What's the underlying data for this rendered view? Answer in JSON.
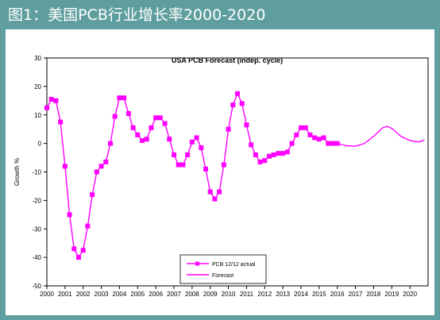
{
  "header": {
    "title": "图1：美国PCB行业增长率2000-2020"
  },
  "chart_data": {
    "type": "line",
    "title": "USA PCB Forecast (indep. cycle)",
    "ylabel": "Growth %",
    "xlabel": "",
    "ylim": [
      -50,
      30
    ],
    "xlim": [
      2000,
      2021
    ],
    "yticks": [
      30,
      20,
      10,
      0,
      -10,
      -20,
      -30,
      -40,
      -50
    ],
    "xticks": [
      "2000",
      "2001",
      "2002",
      "2003",
      "2004",
      "2005",
      "2006",
      "2007",
      "2008",
      "2009",
      "2010",
      "2011",
      "2012",
      "2013",
      "2014",
      "2015",
      "2016",
      "2017",
      "2018",
      "2019",
      "2020"
    ],
    "grid": false,
    "legend_position": "bottom-center",
    "colors": {
      "series": "#ff00ff",
      "frame": "#5f9e9e"
    },
    "series": [
      {
        "name": "PCB 12/12 actual",
        "style": "line-with-square-markers",
        "x": [
          2000.0,
          2000.25,
          2000.5,
          2000.75,
          2001.0,
          2001.25,
          2001.5,
          2001.75,
          2002.0,
          2002.25,
          2002.5,
          2002.75,
          2003.0,
          2003.25,
          2003.5,
          2003.75,
          2004.0,
          2004.25,
          2004.5,
          2004.75,
          2005.0,
          2005.25,
          2005.5,
          2005.75,
          2006.0,
          2006.25,
          2006.5,
          2006.75,
          2007.0,
          2007.25,
          2007.5,
          2007.75,
          2008.0,
          2008.25,
          2008.5,
          2008.75,
          2009.0,
          2009.25,
          2009.5,
          2009.75,
          2010.0,
          2010.25,
          2010.5,
          2010.75,
          2011.0,
          2011.25,
          2011.5,
          2011.75,
          2012.0,
          2012.25,
          2012.5,
          2012.75,
          2013.0,
          2013.25,
          2013.5,
          2013.75,
          2014.0,
          2014.25,
          2014.5,
          2014.75,
          2015.0,
          2015.25,
          2015.5,
          2015.75,
          2016.0
        ],
        "values": [
          12.5,
          15.5,
          15,
          7.5,
          -8,
          -25,
          -37,
          -40,
          -37.5,
          -29,
          -18,
          -10,
          -8,
          -6.5,
          0,
          9.5,
          16,
          16,
          10.5,
          5.5,
          3,
          1,
          1.5,
          5.5,
          9,
          9,
          7,
          1.5,
          -4,
          -7.5,
          -7.5,
          -4,
          0.5,
          2,
          -1.5,
          -9,
          -17,
          -19.5,
          -17,
          -7.5,
          5,
          13.5,
          17.5,
          14,
          6.5,
          -0.5,
          -4,
          -6.5,
          -6,
          -4.5,
          -4,
          -3.5,
          -3.5,
          -3,
          0,
          3,
          5.5,
          5.5,
          3,
          2,
          1.5,
          2,
          0,
          0,
          0
        ]
      },
      {
        "name": "Forecast",
        "style": "line",
        "x": [
          2016.0,
          2016.5,
          2017.0,
          2017.5,
          2018.0,
          2018.5,
          2018.75,
          2019.0,
          2019.5,
          2020.0,
          2020.5,
          2020.8
        ],
        "values": [
          0,
          -0.8,
          -1,
          0,
          2.5,
          5.5,
          6,
          5.3,
          2.5,
          1,
          0.5,
          1.2
        ]
      }
    ]
  }
}
